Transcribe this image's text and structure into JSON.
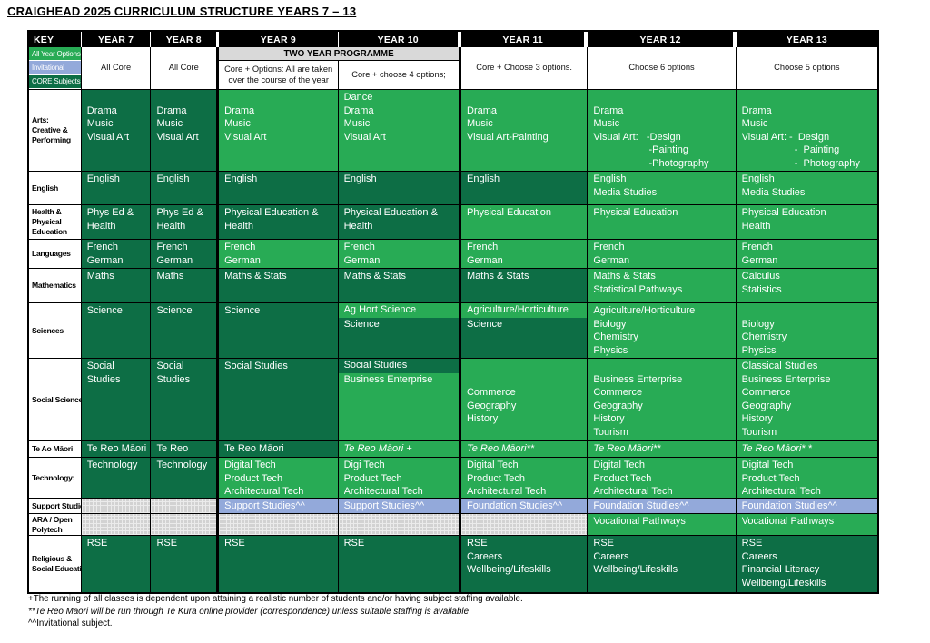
{
  "title": "CRAIGHEAD 2025 CURRICULUM STRUCTURE YEARS 7 – 13",
  "colors": {
    "core_green": "#0d6e45",
    "all_year_option_green": "#28ab55",
    "invitational_blue": "#93a9da",
    "hatch_gray": "#d2d2d2",
    "header_black": "#000000",
    "two_year_banner_gray": "#d9d9d9"
  },
  "table": {
    "header": {
      "key": "KEY",
      "years": [
        "YEAR 7",
        "YEAR 8",
        "YEAR 9",
        "YEAR 10",
        "YEAR 11",
        "YEAR 12",
        "YEAR 13"
      ]
    },
    "legend": [
      {
        "label": "All Year Options",
        "bg": "allyear"
      },
      {
        "label": "Invitational",
        "bg": "invit"
      },
      {
        "label": "CORE Subjects",
        "bg": "core"
      }
    ],
    "programmes": {
      "two_year_banner": "TWO YEAR PROGRAMME",
      "y7": "All Core",
      "y8": "All Core",
      "y9": "Core + Options:  All are taken\nover the course of the year",
      "y10": "Core + choose 4 options;",
      "y11": "Core + Choose 3 options.",
      "y12": "Choose 6 options",
      "y13": "Choose 5 options"
    },
    "rows": [
      {
        "name": "arts",
        "label_lines": [
          "Arts:",
          "Creative &",
          "Performing"
        ],
        "cells": {
          "y7": {
            "bg": "core",
            "lines": [
              "",
              "Drama",
              "Music",
              "Visual Art"
            ]
          },
          "y8": {
            "bg": "core",
            "lines": [
              "",
              "Drama",
              "Music",
              "Visual Art"
            ]
          },
          "y9": {
            "bg": "allyear",
            "lines": [
              "",
              "Drama",
              "Music",
              "Visual Art"
            ]
          },
          "y10": {
            "bg": "allyear",
            "lines": [
              "Dance",
              "Drama",
              "Music",
              "Visual Art"
            ]
          },
          "y11": {
            "bg": "allyear",
            "lines": [
              "",
              "Drama",
              "Music",
              "Visual Art-Painting"
            ]
          },
          "y12": {
            "bg": "allyear",
            "lines": [
              "",
              "Drama",
              "Music",
              "Visual Art:   -Design",
              "                    -Painting",
              "                    -Photography"
            ]
          },
          "y13": {
            "bg": "allyear",
            "lines": [
              "",
              "Drama",
              "Music",
              "Visual Art: -  Design",
              "                   -  Painting",
              "                   -  Photography"
            ]
          }
        }
      },
      {
        "name": "english",
        "label_lines": [
          "English"
        ],
        "cells": {
          "y7": {
            "bg": "core",
            "lines": [
              "English"
            ]
          },
          "y8": {
            "bg": "core",
            "lines": [
              "English"
            ]
          },
          "y9": {
            "bg": "core",
            "lines": [
              "English"
            ]
          },
          "y10": {
            "bg": "core",
            "lines": [
              "English"
            ]
          },
          "y11": {
            "bg": "core",
            "lines": [
              "English"
            ]
          },
          "y12": {
            "bg": "allyear",
            "lines": [
              "English",
              "Media Studies"
            ]
          },
          "y13": {
            "bg": "allyear",
            "lines": [
              "English",
              "Media Studies"
            ]
          }
        }
      },
      {
        "name": "health_pe",
        "label_lines": [
          "Health &",
          "Physical",
          "Education"
        ],
        "cells": {
          "y7": {
            "bg": "core",
            "lines": [
              "Phys Ed &",
              "Health"
            ]
          },
          "y8": {
            "bg": "core",
            "lines": [
              "Phys Ed &",
              "Health"
            ]
          },
          "y9": {
            "bg": "core",
            "lines": [
              "Physical Education &",
              "Health"
            ]
          },
          "y10": {
            "bg": "core",
            "lines": [
              "Physical Education &",
              "Health"
            ]
          },
          "y11": {
            "bg": "allyear",
            "lines": [
              "Physical Education"
            ]
          },
          "y12": {
            "bg": "allyear",
            "lines": [
              "Physical Education"
            ]
          },
          "y13": {
            "bg": "allyear",
            "lines": [
              "Physical Education",
              "Health"
            ]
          }
        }
      },
      {
        "name": "languages",
        "label_lines": [
          "Languages"
        ],
        "cells": {
          "y7": {
            "bg": "core",
            "lines": [
              "French",
              "German"
            ]
          },
          "y8": {
            "bg": "core",
            "lines": [
              "French",
              "German"
            ]
          },
          "y9": {
            "bg": "allyear",
            "lines": [
              "French",
              "German"
            ]
          },
          "y10": {
            "bg": "allyear",
            "lines": [
              "French",
              "German"
            ]
          },
          "y11": {
            "bg": "allyear",
            "lines": [
              "French",
              "German"
            ]
          },
          "y12": {
            "bg": "allyear",
            "lines": [
              "French",
              "German"
            ]
          },
          "y13": {
            "bg": "allyear",
            "lines": [
              "French",
              "German"
            ]
          }
        }
      },
      {
        "name": "mathematics",
        "label_lines": [
          "Mathematics"
        ],
        "cells": {
          "y7": {
            "bg": "core",
            "lines": [
              "Maths"
            ]
          },
          "y8": {
            "bg": "core",
            "lines": [
              "Maths"
            ]
          },
          "y9": {
            "bg": "core",
            "lines": [
              "Maths & Stats"
            ]
          },
          "y10": {
            "bg": "core",
            "lines": [
              "Maths & Stats"
            ]
          },
          "y11": {
            "bg": "core",
            "lines": [
              "Maths & Stats"
            ]
          },
          "y12": {
            "bg": "allyear",
            "lines": [
              "Maths & Stats",
              "Statistical Pathways"
            ]
          },
          "y13": {
            "bg": "allyear",
            "lines": [
              "Calculus",
              "Statistics"
            ]
          }
        }
      },
      {
        "name": "sciences",
        "label_lines": [
          "Sciences"
        ],
        "cells": {
          "y7": {
            "bg": "core",
            "lines": [
              "Science"
            ]
          },
          "y8": {
            "bg": "core",
            "lines": [
              "Science"
            ]
          },
          "y9": {
            "bg": "core",
            "lines": [
              "Science"
            ]
          },
          "y10": {
            "segments": [
              {
                "bg": "allyear",
                "lines": [
                  "Ag Hort Science"
                ]
              },
              {
                "bg": "core",
                "lines": [
                  "Science"
                ]
              }
            ]
          },
          "y11": {
            "segments": [
              {
                "bg": "allyear",
                "lines": [
                  "Agriculture/Horticulture"
                ]
              },
              {
                "bg": "core",
                "lines": [
                  "Science"
                ]
              }
            ]
          },
          "y12": {
            "bg": "allyear",
            "lines": [
              "Agriculture/Horticulture",
              "Biology",
              "Chemistry",
              "Physics"
            ]
          },
          "y13": {
            "bg": "allyear",
            "lines": [
              "",
              "Biology",
              "Chemistry",
              "Physics"
            ]
          }
        }
      },
      {
        "name": "social_sciences",
        "label_lines": [
          "Social Sciences"
        ],
        "cells": {
          "y7": {
            "bg": "core",
            "lines": [
              "Social",
              "Studies"
            ]
          },
          "y8": {
            "bg": "core",
            "lines": [
              "Social",
              "Studies"
            ]
          },
          "y9": {
            "bg": "core",
            "lines": [
              "Social Studies"
            ]
          },
          "y10": {
            "segments": [
              {
                "bg": "core",
                "lines": [
                  "Social Studies"
                ]
              },
              {
                "bg": "allyear",
                "lines": [
                  "Business Enterprise"
                ]
              }
            ]
          },
          "y11": {
            "bg": "allyear",
            "lines": [
              "",
              "",
              "Commerce",
              "Geography",
              "History"
            ]
          },
          "y12": {
            "bg": "allyear",
            "lines": [
              "",
              "Business Enterprise",
              "Commerce",
              "Geography",
              "History",
              "Tourism"
            ]
          },
          "y13": {
            "bg": "allyear",
            "lines": [
              "Classical Studies",
              "Business Enterprise",
              "Commerce",
              "Geography",
              "History",
              "Tourism"
            ]
          }
        }
      },
      {
        "name": "te_ao_maori",
        "label_lines": [
          "Te Ao Māori"
        ],
        "cells": {
          "y7": {
            "bg": "core",
            "lines": [
              "Te Reo Māori"
            ]
          },
          "y8": {
            "bg": "core",
            "lines": [
              "Te Reo Māori"
            ]
          },
          "y9": {
            "bg": "core",
            "lines": [
              "Te Reo Māori"
            ]
          },
          "y10": {
            "bg": "allyear",
            "italic": true,
            "lines": [
              "Te Reo Māori +"
            ]
          },
          "y11": {
            "bg": "allyear",
            "italic": true,
            "lines": [
              "Te Reo Māori**"
            ]
          },
          "y12": {
            "bg": "allyear",
            "italic": true,
            "lines": [
              "Te Reo Māori**"
            ]
          },
          "y13": {
            "bg": "allyear",
            "italic": true,
            "lines": [
              "Te Reo Māori* *"
            ]
          }
        }
      },
      {
        "name": "technology",
        "label_lines": [
          "Technology:"
        ],
        "cells": {
          "y7": {
            "bg": "core",
            "lines": [
              "Technology"
            ]
          },
          "y8": {
            "bg": "core",
            "lines": [
              "Technology"
            ]
          },
          "y9": {
            "bg": "allyear",
            "lines": [
              "Digital Tech",
              "Product Tech",
              "Architectural Tech"
            ]
          },
          "y10": {
            "bg": "allyear",
            "lines": [
              "Digi Tech",
              "Product Tech",
              "Architectural Tech"
            ]
          },
          "y11": {
            "bg": "allyear",
            "lines": [
              "Digital Tech",
              "Product Tech",
              "Architectural Tech"
            ]
          },
          "y12": {
            "bg": "allyear",
            "lines": [
              "Digital Tech",
              "Product Tech",
              "Architectural Tech"
            ]
          },
          "y13": {
            "bg": "allyear",
            "lines": [
              "Digital Tech",
              "Product Tech",
              "Architectural Tech"
            ]
          }
        }
      },
      {
        "name": "support_studies",
        "label_lines": [
          "Support Studies"
        ],
        "cells": {
          "y7": {
            "bg": "gray",
            "lines": []
          },
          "y8": {
            "bg": "gray",
            "lines": []
          },
          "y9": {
            "bg": "invit",
            "lines": [
              "Support Studies^^"
            ]
          },
          "y10": {
            "bg": "invit",
            "lines": [
              "Support Studies^^"
            ]
          },
          "y11": {
            "bg": "invit",
            "lines": [
              "Foundation Studies^^"
            ]
          },
          "y12": {
            "bg": "invit",
            "lines": [
              "Foundation Studies^^"
            ]
          },
          "y13": {
            "bg": "invit",
            "lines": [
              "Foundation Studies^^"
            ]
          }
        }
      },
      {
        "name": "ara_open_polytech",
        "label_lines": [
          "ARA / Open",
          "Polytech"
        ],
        "cells": {
          "y7": {
            "bg": "gray",
            "lines": []
          },
          "y8": {
            "bg": "gray",
            "lines": []
          },
          "y9": {
            "bg": "gray",
            "lines": []
          },
          "y10": {
            "bg": "gray",
            "lines": []
          },
          "y11": {
            "bg": "gray",
            "lines": []
          },
          "y12": {
            "bg": "allyear",
            "lines": [
              "Vocational Pathways"
            ]
          },
          "y13": {
            "bg": "allyear",
            "lines": [
              "Vocational Pathways"
            ]
          }
        }
      },
      {
        "name": "religious_social_education",
        "label_lines": [
          "Religious &",
          "Social Education"
        ],
        "cells": {
          "y7": {
            "bg": "core",
            "lines": [
              "RSE"
            ]
          },
          "y8": {
            "bg": "core",
            "lines": [
              "RSE"
            ]
          },
          "y9": {
            "bg": "core",
            "lines": [
              "RSE"
            ]
          },
          "y10": {
            "bg": "core",
            "lines": [
              "RSE"
            ]
          },
          "y11": {
            "bg": "core",
            "lines": [
              "RSE",
              "Careers",
              "Wellbeing/Lifeskills"
            ]
          },
          "y12": {
            "bg": "core",
            "lines": [
              "RSE",
              "Careers",
              "Wellbeing/Lifeskills"
            ]
          },
          "y13": {
            "bg": "core",
            "lines": [
              "RSE",
              "Careers",
              "Financial Literacy",
              "Wellbeing/Lifeskills"
            ]
          }
        }
      }
    ]
  },
  "footnotes": [
    "+The running of all classes is dependent upon attaining a realistic number of students and/or having subject staffing available.",
    "**Te Reo Māori will be run through Te Kura online provider (correspondence) unless suitable staffing is available",
    "^^Invitational subject."
  ]
}
